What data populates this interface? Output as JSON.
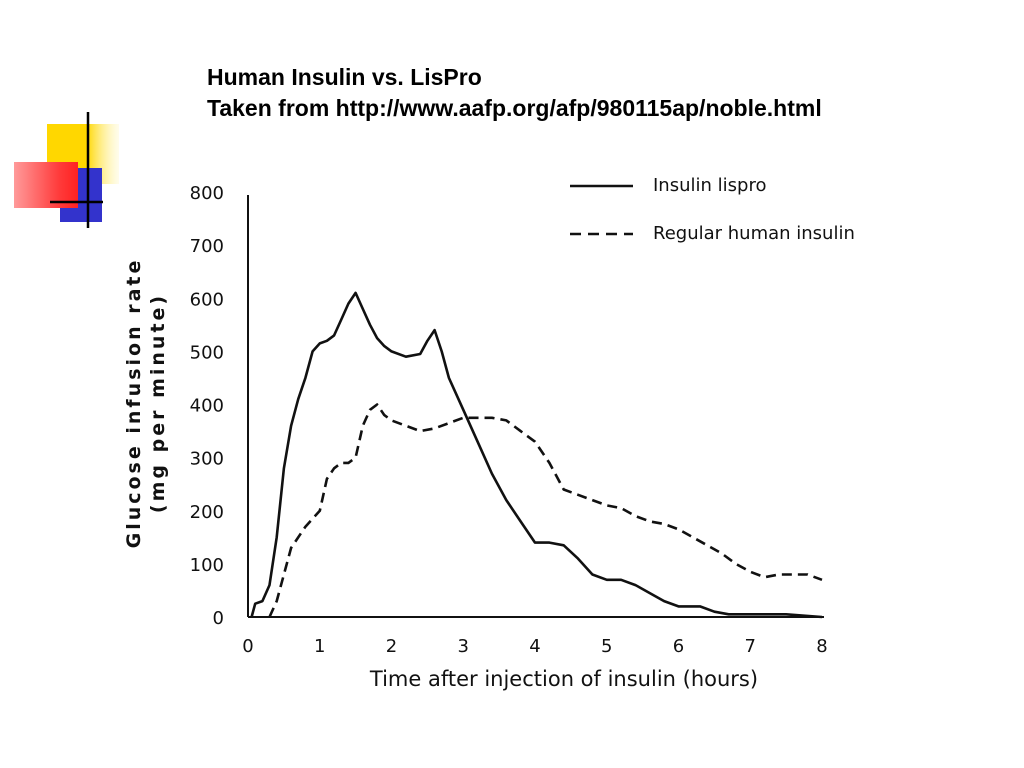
{
  "slide": {
    "title_line1": "Human Insulin vs. LisPro",
    "title_line2": "Taken from http://www.aafp.org/afp/980115ap/noble.html"
  },
  "decoration": {
    "colors": {
      "yellow": "#ffd700",
      "blue": "#3333cc",
      "red": "#ff3333",
      "line": "#000000"
    }
  },
  "chart_data": {
    "type": "line",
    "title": "",
    "xlabel": "Time after injection of insulin (hours)",
    "ylabel_line1": "Glucose infusion rate",
    "ylabel_line2": "(mg per minute)",
    "xlim": [
      0,
      8
    ],
    "ylim": [
      0,
      800
    ],
    "x_ticks": [
      "0",
      "1",
      "2",
      "3",
      "4",
      "5",
      "6",
      "7",
      "8"
    ],
    "y_ticks": [
      "0",
      "100",
      "200",
      "300",
      "400",
      "500",
      "600",
      "700",
      "800"
    ],
    "grid": false,
    "legend_position": "top-right",
    "series": [
      {
        "name": "Insulin lispro",
        "style": "solid",
        "color": "#111111",
        "points": [
          [
            0.05,
            0
          ],
          [
            0.1,
            25
          ],
          [
            0.2,
            30
          ],
          [
            0.3,
            60
          ],
          [
            0.4,
            150
          ],
          [
            0.5,
            280
          ],
          [
            0.6,
            360
          ],
          [
            0.7,
            410
          ],
          [
            0.8,
            450
          ],
          [
            0.9,
            500
          ],
          [
            1.0,
            515
          ],
          [
            1.1,
            520
          ],
          [
            1.2,
            530
          ],
          [
            1.3,
            560
          ],
          [
            1.4,
            590
          ],
          [
            1.5,
            610
          ],
          [
            1.6,
            580
          ],
          [
            1.7,
            550
          ],
          [
            1.8,
            525
          ],
          [
            1.9,
            510
          ],
          [
            2.0,
            500
          ],
          [
            2.2,
            490
          ],
          [
            2.4,
            495
          ],
          [
            2.5,
            520
          ],
          [
            2.6,
            540
          ],
          [
            2.7,
            500
          ],
          [
            2.8,
            450
          ],
          [
            3.0,
            390
          ],
          [
            3.2,
            330
          ],
          [
            3.4,
            270
          ],
          [
            3.6,
            220
          ],
          [
            3.8,
            180
          ],
          [
            4.0,
            140
          ],
          [
            4.2,
            140
          ],
          [
            4.4,
            135
          ],
          [
            4.6,
            110
          ],
          [
            4.8,
            80
          ],
          [
            5.0,
            70
          ],
          [
            5.2,
            70
          ],
          [
            5.4,
            60
          ],
          [
            5.6,
            45
          ],
          [
            5.8,
            30
          ],
          [
            6.0,
            20
          ],
          [
            6.3,
            20
          ],
          [
            6.5,
            10
          ],
          [
            6.7,
            5
          ],
          [
            7.0,
            5
          ],
          [
            7.5,
            5
          ],
          [
            8.0,
            0
          ]
        ]
      },
      {
        "name": "Regular human insulin",
        "style": "dashed",
        "color": "#111111",
        "points": [
          [
            0.3,
            0
          ],
          [
            0.4,
            30
          ],
          [
            0.5,
            80
          ],
          [
            0.6,
            130
          ],
          [
            0.8,
            170
          ],
          [
            1.0,
            200
          ],
          [
            1.1,
            260
          ],
          [
            1.2,
            280
          ],
          [
            1.3,
            290
          ],
          [
            1.4,
            290
          ],
          [
            1.5,
            300
          ],
          [
            1.6,
            360
          ],
          [
            1.7,
            390
          ],
          [
            1.8,
            400
          ],
          [
            1.9,
            380
          ],
          [
            2.0,
            370
          ],
          [
            2.2,
            360
          ],
          [
            2.4,
            350
          ],
          [
            2.6,
            355
          ],
          [
            2.8,
            365
          ],
          [
            3.0,
            375
          ],
          [
            3.2,
            375
          ],
          [
            3.4,
            375
          ],
          [
            3.6,
            370
          ],
          [
            3.8,
            350
          ],
          [
            4.0,
            330
          ],
          [
            4.2,
            290
          ],
          [
            4.4,
            240
          ],
          [
            4.6,
            230
          ],
          [
            4.8,
            220
          ],
          [
            5.0,
            210
          ],
          [
            5.2,
            205
          ],
          [
            5.4,
            190
          ],
          [
            5.6,
            180
          ],
          [
            5.8,
            175
          ],
          [
            6.0,
            165
          ],
          [
            6.2,
            150
          ],
          [
            6.4,
            135
          ],
          [
            6.6,
            120
          ],
          [
            6.8,
            100
          ],
          [
            7.0,
            85
          ],
          [
            7.2,
            75
          ],
          [
            7.4,
            80
          ],
          [
            7.6,
            80
          ],
          [
            7.8,
            80
          ],
          [
            8.0,
            70
          ]
        ]
      }
    ]
  }
}
